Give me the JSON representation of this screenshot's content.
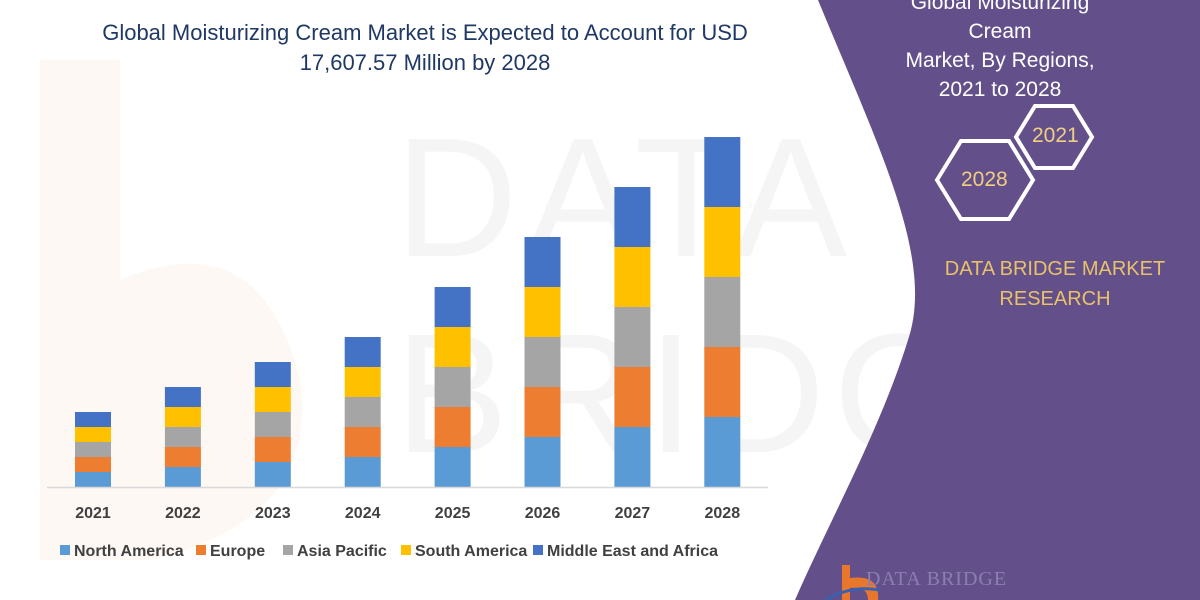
{
  "title": "Global Moisturizing Cream Market is Expected to Account for USD 17,607.57 Million by 2028",
  "side_panel": {
    "title_lines": [
      "Global Moisturizing Cream",
      "Market, By Regions,",
      "2021 to 2028"
    ],
    "hex_labels": [
      "2021",
      "2028"
    ],
    "brand_lines": [
      "DATA BRIDGE MARKET",
      "RESEARCH"
    ],
    "logo_text": "DATA BRIDGE",
    "watermark_text": "DATA BRIDGE",
    "panel_color": "#634f8a",
    "gold_color": "#e8c26a"
  },
  "chart_data": {
    "type": "bar",
    "stacked": true,
    "title": "Global Moisturizing Cream Market is Expected to Account for USD 17,607.57 Million by 2028",
    "xlabel": "",
    "ylabel": "",
    "y_axis_shown": false,
    "grid": false,
    "legend_position": "bottom",
    "categories": [
      "2021",
      "2022",
      "2023",
      "2024",
      "2025",
      "2026",
      "2027",
      "2028"
    ],
    "series": [
      {
        "name": "North America",
        "color": "#5b9bd5",
        "values": [
          15,
          20,
          25,
          30,
          40,
          50,
          60,
          70
        ]
      },
      {
        "name": "Europe",
        "color": "#ed7d31",
        "values": [
          15,
          20,
          25,
          30,
          40,
          50,
          60,
          70
        ]
      },
      {
        "name": "Asia Pacific",
        "color": "#a5a5a5",
        "values": [
          15,
          20,
          25,
          30,
          40,
          50,
          60,
          70
        ]
      },
      {
        "name": "South America",
        "color": "#ffc000",
        "values": [
          15,
          20,
          25,
          30,
          40,
          50,
          60,
          70
        ]
      },
      {
        "name": "Middle East and Africa",
        "color": "#4472c4",
        "values": [
          15,
          20,
          25,
          30,
          40,
          50,
          60,
          70
        ]
      }
    ]
  }
}
